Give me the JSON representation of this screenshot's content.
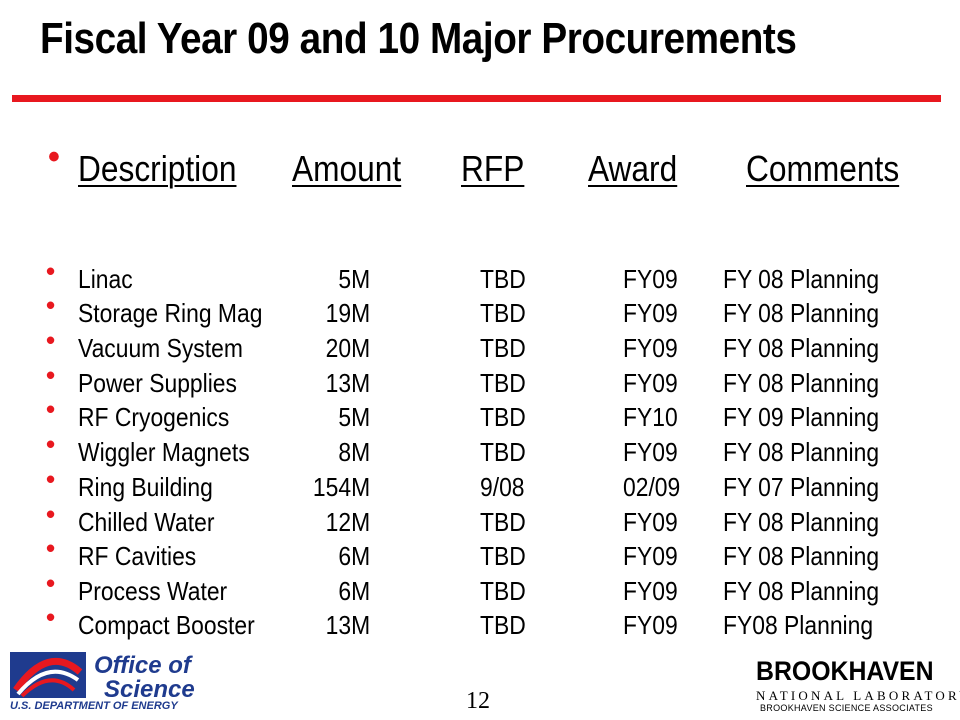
{
  "title": "Fiscal Year 09 and 10 Major Procurements",
  "colors": {
    "accent_red": "#e8181f",
    "doe_blue": "#1f3b8e"
  },
  "header": {
    "description": "Description",
    "amount": "Amount",
    "rfp": "RFP",
    "award": "Award",
    "comments": "Comments"
  },
  "rows": [
    {
      "description": "Linac",
      "amount": "5M",
      "rfp": "TBD",
      "award": "FY09",
      "comments": "FY 08 Planning"
    },
    {
      "description": "Storage Ring Mag",
      "amount": "19M",
      "rfp": "TBD",
      "award": "FY09",
      "comments": "FY 08 Planning"
    },
    {
      "description": "Vacuum System",
      "amount": "20M",
      "rfp": "TBD",
      "award": "FY09",
      "comments": "FY 08 Planning"
    },
    {
      "description": "Power Supplies",
      "amount": "13M",
      "rfp": "TBD",
      "award": "FY09",
      "comments": "FY 08 Planning"
    },
    {
      "description": "RF Cryogenics",
      "amount": "5M",
      "rfp": "TBD",
      "award": "FY10",
      "comments": "FY 09 Planning"
    },
    {
      "description": "Wiggler Magnets",
      "amount": "8M",
      "rfp": "TBD",
      "award": "FY09",
      "comments": "FY 08 Planning"
    },
    {
      "description": "Ring Building",
      "amount": "154M",
      "rfp": "9/08",
      "award": "02/09",
      "comments": "FY 07 Planning"
    },
    {
      "description": "Chilled Water",
      "amount": "12M",
      "rfp": "TBD",
      "award": "FY09",
      "comments": "FY 08 Planning"
    },
    {
      "description": "RF Cavities",
      "amount": "6M",
      "rfp": "TBD",
      "award": "FY09",
      "comments": "FY 08 Planning"
    },
    {
      "description": "Process Water",
      "amount": "6M",
      "rfp": "TBD",
      "award": "FY09",
      "comments": "FY 08 Planning"
    },
    {
      "description": "Compact Booster",
      "amount": "13M",
      "rfp": "TBD",
      "award": "FY09",
      "comments": "FY08 Planning"
    }
  ],
  "footer": {
    "page_number": "12",
    "doe_logo": {
      "office_of": "Office of",
      "science": "Science",
      "department": "U.S. DEPARTMENT OF ENERGY"
    },
    "bnl_logo": {
      "name": "BROOKHAVEN",
      "lab": "NATIONAL LABORATORY",
      "associates": "BROOKHAVEN SCIENCE ASSOCIATES"
    }
  }
}
